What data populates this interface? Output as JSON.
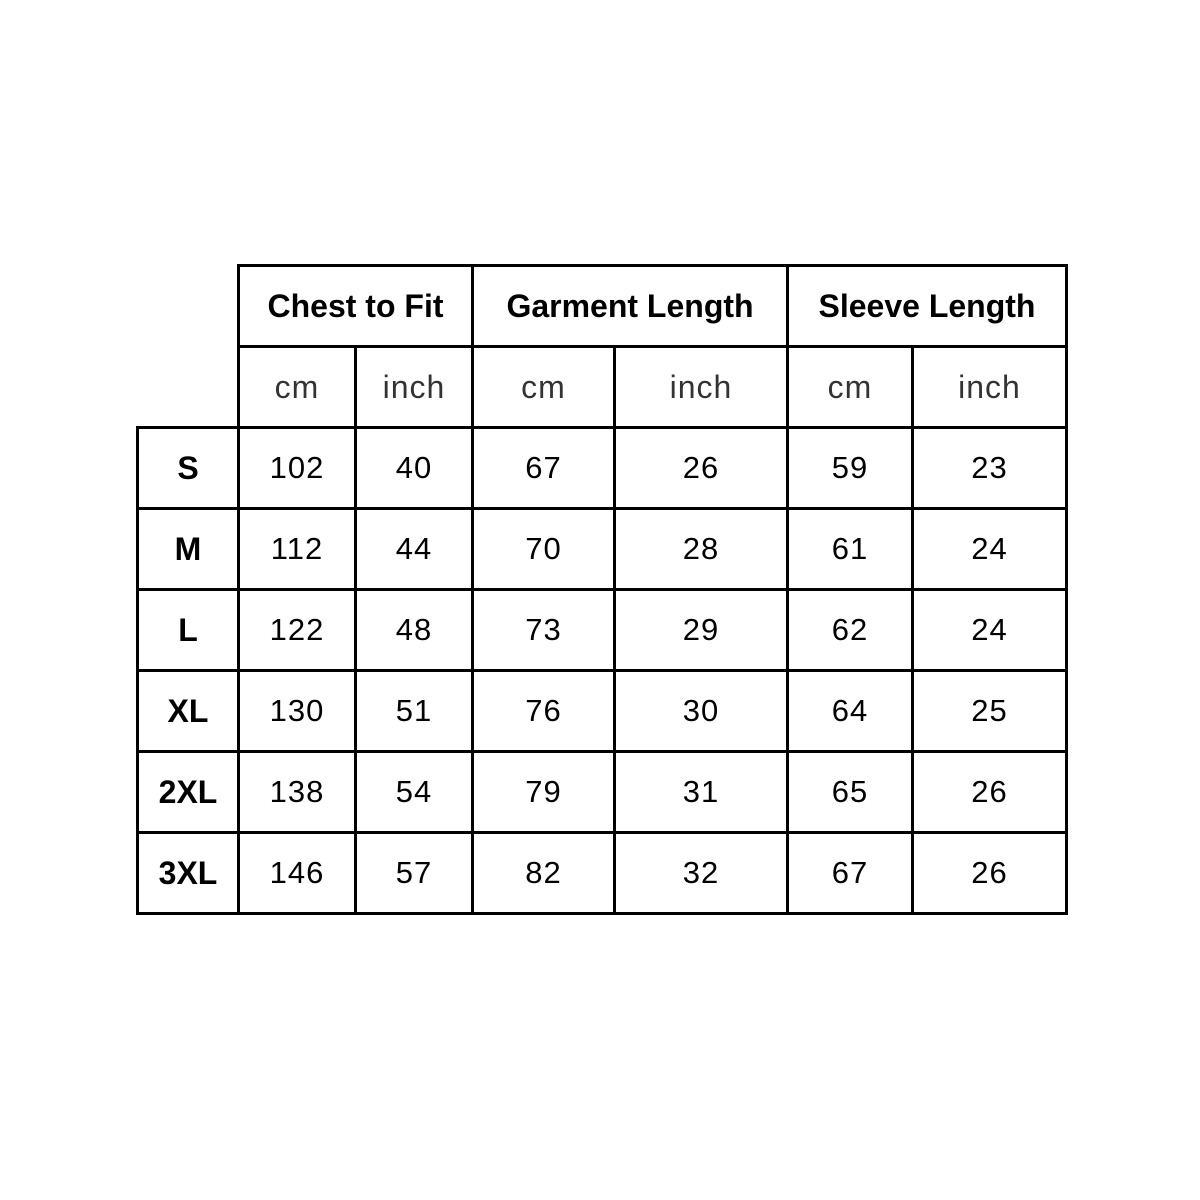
{
  "header": {
    "groups": [
      "Chest to Fit",
      "Garment Length",
      "Sleeve Length"
    ],
    "units": [
      "cm",
      "inch",
      "cm",
      "inch",
      "cm",
      "inch"
    ]
  },
  "rows": [
    {
      "size": "S",
      "values": [
        "102",
        "40",
        "67",
        "26",
        "59",
        "23"
      ]
    },
    {
      "size": "M",
      "values": [
        "112",
        "44",
        "70",
        "28",
        "61",
        "24"
      ]
    },
    {
      "size": "L",
      "values": [
        "122",
        "48",
        "73",
        "29",
        "62",
        "24"
      ]
    },
    {
      "size": "XL",
      "values": [
        "130",
        "51",
        "76",
        "30",
        "64",
        "25"
      ]
    },
    {
      "size": "2XL",
      "values": [
        "138",
        "54",
        "79",
        "31",
        "65",
        "26"
      ]
    },
    {
      "size": "3XL",
      "values": [
        "146",
        "57",
        "82",
        "32",
        "67",
        "26"
      ]
    }
  ]
}
